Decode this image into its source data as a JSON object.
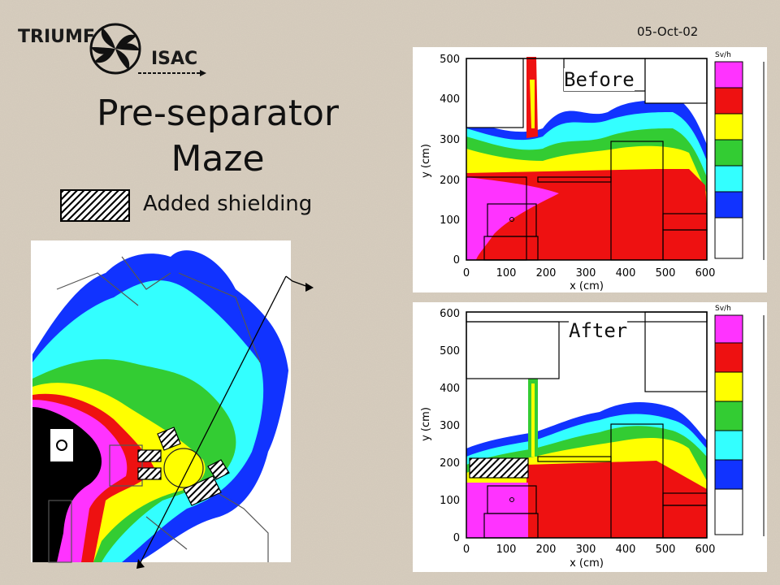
{
  "slide": {
    "date": "05-Oct-02",
    "title_line1": "Pre-separator",
    "title_line2": "Maze",
    "legend_label": "Added shielding"
  },
  "logo": {
    "main": "TRIUMF",
    "sub": "ISAC"
  },
  "plots": {
    "before": {
      "label": "Before",
      "ylabel": "y (cm)",
      "xlabel": "x (cm)",
      "yticks": [
        "0",
        "100",
        "200",
        "300",
        "400",
        "500"
      ],
      "xticks": [
        "0",
        "100",
        "200",
        "300",
        "400",
        "500",
        "600"
      ],
      "colorbar_title": "Sv/h"
    },
    "after": {
      "label": "After",
      "ylabel": "y (cm)",
      "xlabel": "x (cm)",
      "yticks": [
        "0",
        "100",
        "200",
        "300",
        "400",
        "500",
        "600"
      ],
      "xticks": [
        "0",
        "100",
        "200",
        "300",
        "400",
        "500",
        "600"
      ],
      "colorbar_title": "Sv/h"
    }
  },
  "colors": {
    "magenta": "#ff33ff",
    "red": "#ee1111",
    "yellow": "#ffff00",
    "green": "#33cc33",
    "cyan": "#33ffff",
    "blue": "#1133ff",
    "black": "#000000",
    "white": "#ffffff"
  }
}
